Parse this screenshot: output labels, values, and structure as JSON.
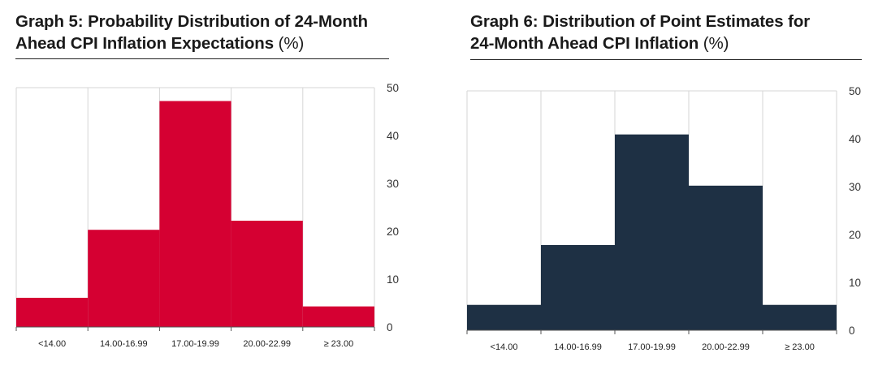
{
  "chart_data": [
    {
      "type": "bar",
      "title": "Graph 5: Probability Distribution of 24-Month Ahead CPI Inflation Expectations",
      "title_line1": "Graph 5: Probability Distribution of 24-Month",
      "title_line2": "Ahead CPI Inflation Expectations",
      "unit": "(%)",
      "categories": [
        "<14.00",
        "14.00-16.99",
        "17.00-19.99",
        "20.00-22.99",
        "≥ 23.00"
      ],
      "values": [
        6.1,
        20.3,
        47.2,
        22.2,
        4.3
      ],
      "ylim": [
        0,
        50
      ],
      "yticks": [
        0,
        10,
        20,
        30,
        40,
        50
      ],
      "color": "#d50032",
      "grid": true,
      "xlabel": "",
      "ylabel": ""
    },
    {
      "type": "bar",
      "title": "Graph 6: Distribution of Point Estimates for 24-Month Ahead CPI Inflation",
      "title_line1": "Graph 6: Distribution of Point Estimates for",
      "title_line2": "24-Month Ahead CPI Inflation",
      "unit": "(%)",
      "categories": [
        "<14.00",
        "14.00-16.99",
        "17.00-19.99",
        "20.00-22.99",
        "≥ 23.00"
      ],
      "values": [
        5.3,
        17.8,
        40.9,
        30.2,
        5.3
      ],
      "ylim": [
        0,
        50
      ],
      "yticks": [
        0,
        10,
        20,
        30,
        40,
        50
      ],
      "color": "#1e3044",
      "grid": true,
      "xlabel": "",
      "ylabel": ""
    }
  ]
}
